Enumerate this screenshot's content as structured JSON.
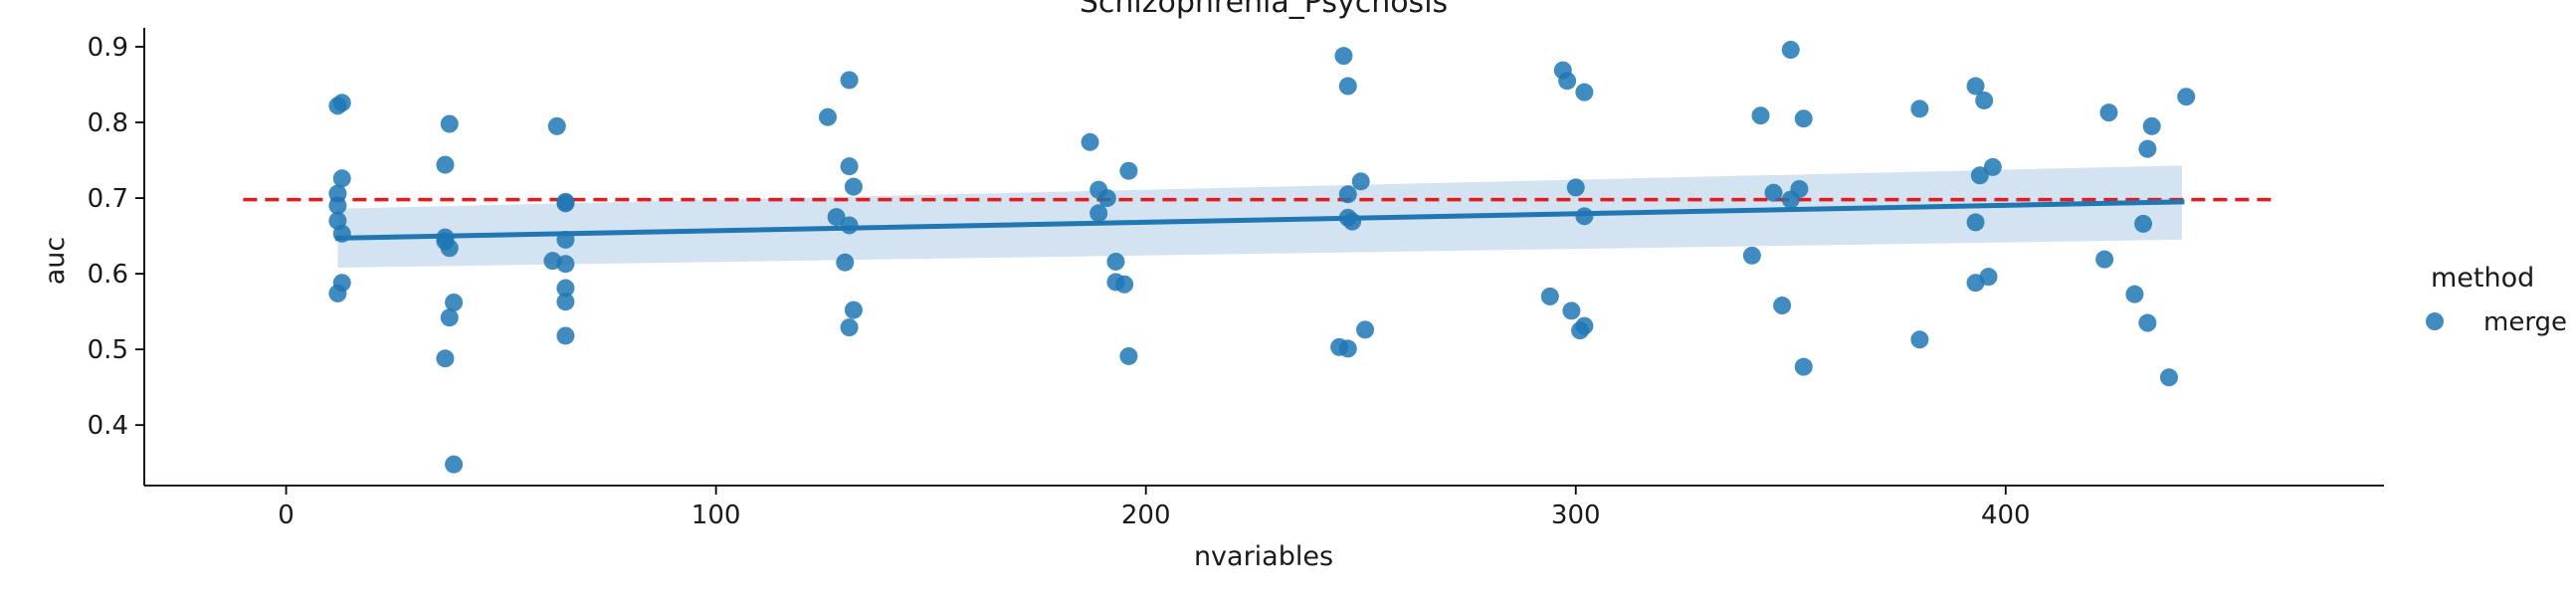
{
  "chart_data": {
    "type": "scatter",
    "title": "Schizophrenia_Psychosis",
    "xlabel": "nvariables",
    "ylabel": "auc",
    "xlim": [
      -33,
      488
    ],
    "ylim": [
      0.32,
      0.925
    ],
    "xticks": [
      0,
      100,
      200,
      300,
      400
    ],
    "yticks": [
      0.4,
      0.5,
      0.6,
      0.7,
      0.8,
      0.9
    ],
    "xtick_labels": [
      "0",
      "100",
      "200",
      "300",
      "400"
    ],
    "ytick_labels": [
      "0.4",
      "0.5",
      "0.6",
      "0.7",
      "0.8",
      "0.9"
    ],
    "grid": false,
    "legend": {
      "title": "method",
      "entries": [
        "merge"
      ],
      "placement": "outside right"
    },
    "colors": {
      "points": "#1f77b4",
      "reference_line": "#e41a1c",
      "band": "#c6d9ec"
    },
    "reference_line": {
      "y": 0.698,
      "style": "dashed",
      "x_range": [
        -10,
        462
      ]
    },
    "regression": {
      "x_range": [
        12,
        441
      ],
      "y_range": [
        0.647,
        0.695
      ],
      "ci_lower": [
        0.608,
        0.645
      ],
      "ci_upper": [
        0.686,
        0.743
      ]
    },
    "series": [
      {
        "name": "merge",
        "points": [
          [
            12,
            0.822
          ],
          [
            13,
            0.826
          ],
          [
            13,
            0.726
          ],
          [
            12,
            0.706
          ],
          [
            12,
            0.69
          ],
          [
            12,
            0.67
          ],
          [
            13,
            0.653
          ],
          [
            13,
            0.588
          ],
          [
            12,
            0.574
          ],
          [
            37,
            0.744
          ],
          [
            38,
            0.798
          ],
          [
            37,
            0.648
          ],
          [
            37,
            0.643
          ],
          [
            38,
            0.634
          ],
          [
            39,
            0.562
          ],
          [
            38,
            0.542
          ],
          [
            37,
            0.488
          ],
          [
            39,
            0.348
          ],
          [
            63,
            0.795
          ],
          [
            65,
            0.695
          ],
          [
            65,
            0.693
          ],
          [
            65,
            0.645
          ],
          [
            62,
            0.617
          ],
          [
            65,
            0.613
          ],
          [
            65,
            0.581
          ],
          [
            65,
            0.563
          ],
          [
            65,
            0.518
          ],
          [
            126,
            0.807
          ],
          [
            131,
            0.856
          ],
          [
            131,
            0.742
          ],
          [
            132,
            0.715
          ],
          [
            128,
            0.675
          ],
          [
            131,
            0.664
          ],
          [
            130,
            0.615
          ],
          [
            132,
            0.552
          ],
          [
            131,
            0.529
          ],
          [
            187,
            0.774
          ],
          [
            189,
            0.711
          ],
          [
            191,
            0.7
          ],
          [
            189,
            0.68
          ],
          [
            196,
            0.736
          ],
          [
            193,
            0.616
          ],
          [
            193,
            0.589
          ],
          [
            195,
            0.586
          ],
          [
            196,
            0.491
          ],
          [
            246,
            0.888
          ],
          [
            247,
            0.848
          ],
          [
            250,
            0.722
          ],
          [
            247,
            0.705
          ],
          [
            247,
            0.674
          ],
          [
            248,
            0.669
          ],
          [
            251,
            0.526
          ],
          [
            245,
            0.503
          ],
          [
            247,
            0.501
          ],
          [
            297,
            0.869
          ],
          [
            298,
            0.855
          ],
          [
            302,
            0.84
          ],
          [
            300,
            0.714
          ],
          [
            302,
            0.676
          ],
          [
            294,
            0.57
          ],
          [
            299,
            0.551
          ],
          [
            302,
            0.531
          ],
          [
            301,
            0.525
          ],
          [
            350,
            0.896
          ],
          [
            343,
            0.809
          ],
          [
            353,
            0.805
          ],
          [
            346,
            0.707
          ],
          [
            352,
            0.712
          ],
          [
            350,
            0.698
          ],
          [
            341,
            0.624
          ],
          [
            348,
            0.558
          ],
          [
            353,
            0.477
          ],
          [
            380,
            0.818
          ],
          [
            393,
            0.848
          ],
          [
            395,
            0.829
          ],
          [
            397,
            0.741
          ],
          [
            394,
            0.73
          ],
          [
            393,
            0.668
          ],
          [
            396,
            0.596
          ],
          [
            393,
            0.588
          ],
          [
            380,
            0.513
          ],
          [
            424,
            0.813
          ],
          [
            442,
            0.834
          ],
          [
            434,
            0.795
          ],
          [
            433,
            0.765
          ],
          [
            432,
            0.666
          ],
          [
            423,
            0.619
          ],
          [
            430,
            0.573
          ],
          [
            433,
            0.535
          ],
          [
            438,
            0.463
          ]
        ]
      }
    ]
  }
}
